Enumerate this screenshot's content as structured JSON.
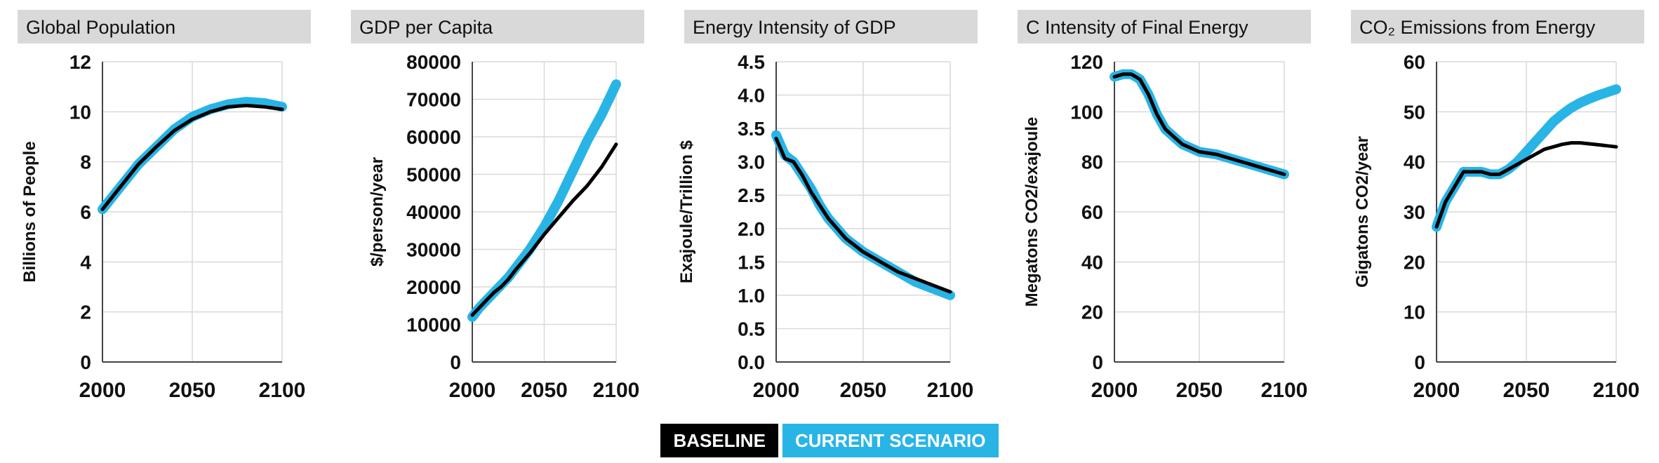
{
  "colors": {
    "baseline": "#000000",
    "scenario": "#29b4e6",
    "title_bg": "#d9d9d9",
    "grid": "#d9d9d9"
  },
  "legend": {
    "baseline": "BASELINE",
    "scenario": "CURRENT SCENARIO"
  },
  "chart_data": [
    {
      "type": "line",
      "title": "Global Population",
      "ylabel": "Billions of People",
      "xlim": [
        2000,
        2100
      ],
      "ylim": [
        0,
        12
      ],
      "xticks": [
        "2000",
        "2050",
        "2100"
      ],
      "yticks": [
        "0",
        "2",
        "4",
        "6",
        "8",
        "10",
        "12"
      ],
      "grid": true,
      "series": [
        {
          "name": "CURRENT SCENARIO",
          "color": "#29b4e6",
          "x": [
            2000,
            2010,
            2020,
            2030,
            2040,
            2050,
            2060,
            2070,
            2080,
            2090,
            2100
          ],
          "y": [
            6.1,
            7.0,
            7.9,
            8.6,
            9.3,
            9.8,
            10.1,
            10.3,
            10.4,
            10.35,
            10.2
          ]
        },
        {
          "name": "BASELINE",
          "color": "#000000",
          "x": [
            2000,
            2010,
            2020,
            2030,
            2040,
            2050,
            2060,
            2070,
            2080,
            2090,
            2100
          ],
          "y": [
            6.1,
            7.0,
            7.9,
            8.6,
            9.25,
            9.7,
            10.0,
            10.2,
            10.25,
            10.2,
            10.1
          ]
        }
      ]
    },
    {
      "type": "line",
      "title": "GDP per Capita",
      "ylabel": "$/person/year",
      "xlim": [
        2000,
        2100
      ],
      "ylim": [
        0,
        80000
      ],
      "xticks": [
        "2000",
        "2050",
        "2100"
      ],
      "yticks": [
        "0",
        "10000",
        "20000",
        "30000",
        "40000",
        "50000",
        "60000",
        "70000",
        "80000"
      ],
      "grid": true,
      "series": [
        {
          "name": "CURRENT SCENARIO",
          "color": "#29b4e6",
          "x": [
            2000,
            2005,
            2010,
            2015,
            2020,
            2025,
            2030,
            2040,
            2050,
            2060,
            2070,
            2080,
            2090,
            2100
          ],
          "y": [
            12000,
            14500,
            16500,
            18500,
            20500,
            22500,
            25000,
            30000,
            36000,
            43000,
            51000,
            59000,
            66000,
            74000
          ]
        },
        {
          "name": "BASELINE",
          "color": "#000000",
          "x": [
            2000,
            2005,
            2010,
            2015,
            2020,
            2025,
            2030,
            2040,
            2050,
            2060,
            2070,
            2080,
            2090,
            2100
          ],
          "y": [
            12500,
            14500,
            16500,
            18500,
            20000,
            22000,
            24500,
            29000,
            34000,
            38500,
            43000,
            47000,
            52000,
            58000
          ]
        }
      ]
    },
    {
      "type": "line",
      "title": "Energy Intensity of GDP",
      "ylabel": "Exajoule/Trillion $",
      "xlim": [
        2000,
        2100
      ],
      "ylim": [
        0,
        4.5
      ],
      "xticks": [
        "2000",
        "2050",
        "2100"
      ],
      "yticks": [
        "0.0",
        "0.5",
        "1.0",
        "1.5",
        "2.0",
        "2.5",
        "3.0",
        "3.5",
        "4.0",
        "4.5"
      ],
      "grid": true,
      "series": [
        {
          "name": "CURRENT SCENARIO",
          "color": "#29b4e6",
          "x": [
            2000,
            2005,
            2010,
            2015,
            2020,
            2025,
            2030,
            2040,
            2050,
            2060,
            2070,
            2080,
            2090,
            2100
          ],
          "y": [
            3.4,
            3.1,
            3.0,
            2.8,
            2.6,
            2.35,
            2.15,
            1.85,
            1.65,
            1.5,
            1.35,
            1.2,
            1.1,
            1.0
          ]
        },
        {
          "name": "BASELINE",
          "color": "#000000",
          "x": [
            2000,
            2005,
            2010,
            2015,
            2020,
            2025,
            2030,
            2040,
            2050,
            2060,
            2070,
            2080,
            2090,
            2100
          ],
          "y": [
            3.35,
            3.05,
            3.0,
            2.8,
            2.55,
            2.35,
            2.15,
            1.85,
            1.65,
            1.5,
            1.35,
            1.25,
            1.15,
            1.05
          ]
        }
      ]
    },
    {
      "type": "line",
      "title": "C Intensity of Final Energy",
      "ylabel": "Megatons CO2/exajoule",
      "xlim": [
        2000,
        2100
      ],
      "ylim": [
        0,
        120
      ],
      "xticks": [
        "2000",
        "2050",
        "2100"
      ],
      "yticks": [
        "0",
        "20",
        "40",
        "60",
        "80",
        "100",
        "120"
      ],
      "grid": true,
      "series": [
        {
          "name": "CURRENT SCENARIO",
          "color": "#29b4e6",
          "x": [
            2000,
            2005,
            2010,
            2015,
            2020,
            2025,
            2030,
            2040,
            2050,
            2060,
            2070,
            2080,
            2090,
            2100
          ],
          "y": [
            114,
            115,
            115,
            113,
            107,
            99,
            93,
            87,
            84,
            83,
            81,
            79,
            77,
            75
          ]
        },
        {
          "name": "BASELINE",
          "color": "#000000",
          "x": [
            2000,
            2005,
            2010,
            2015,
            2020,
            2025,
            2030,
            2040,
            2050,
            2060,
            2070,
            2080,
            2090,
            2100
          ],
          "y": [
            114,
            115,
            115,
            113,
            107,
            99,
            93,
            87,
            84,
            83,
            81,
            79,
            77,
            75
          ]
        }
      ]
    },
    {
      "type": "line",
      "title": "CO₂ Emissions from Energy",
      "ylabel": "Gigatons CO2/year",
      "xlim": [
        2000,
        2100
      ],
      "ylim": [
        0,
        60
      ],
      "xticks": [
        "2000",
        "2050",
        "2100"
      ],
      "yticks": [
        "0",
        "10",
        "20",
        "30",
        "40",
        "50",
        "60"
      ],
      "grid": true,
      "series": [
        {
          "name": "CURRENT SCENARIO",
          "color": "#29b4e6",
          "x": [
            2000,
            2005,
            2010,
            2015,
            2020,
            2025,
            2030,
            2035,
            2040,
            2045,
            2050,
            2055,
            2060,
            2065,
            2070,
            2075,
            2080,
            2085,
            2090,
            2095,
            2100
          ],
          "y": [
            27,
            32,
            35,
            38,
            38,
            38,
            37.5,
            37.5,
            38.5,
            40,
            42,
            44,
            46,
            48,
            49.5,
            50.8,
            51.8,
            52.6,
            53.3,
            53.9,
            54.5
          ]
        },
        {
          "name": "BASELINE",
          "color": "#000000",
          "x": [
            2000,
            2005,
            2010,
            2015,
            2020,
            2025,
            2030,
            2035,
            2040,
            2045,
            2050,
            2055,
            2060,
            2065,
            2070,
            2075,
            2080,
            2085,
            2090,
            2095,
            2100
          ],
          "y": [
            27,
            32,
            35,
            38,
            38,
            38,
            37.5,
            37.5,
            38.5,
            39.5,
            40.5,
            41.5,
            42.5,
            43,
            43.5,
            43.8,
            43.8,
            43.6,
            43.4,
            43.2,
            43
          ]
        }
      ]
    }
  ]
}
